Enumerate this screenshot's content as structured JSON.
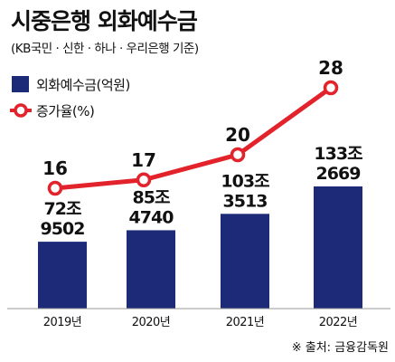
{
  "title": "시중은행 외화예수금",
  "subtitle": "(KB국민 · 신한 · 하나 · 우리은행 기준)",
  "source": "※ 출처: 금융감독원",
  "colors": {
    "bar": "#1c2a78",
    "line": "#e3232c",
    "axis": "#999999"
  },
  "chart_data": {
    "type": "bar",
    "categories": [
      "2019년",
      "2020년",
      "2021년",
      "2022년"
    ],
    "series": [
      {
        "name": "외화예수금(억원)",
        "type": "bar",
        "values": [
          729502,
          854740,
          1033513,
          1332669
        ],
        "labels_top": [
          "72조",
          "85조",
          "103조",
          "133조"
        ],
        "labels_bottom": [
          "9502",
          "4740",
          "3513",
          "2669"
        ]
      },
      {
        "name": "증가율(%)",
        "type": "line",
        "values": [
          16,
          17,
          20,
          28
        ]
      }
    ],
    "legend_position": "top-left",
    "grid": false
  }
}
